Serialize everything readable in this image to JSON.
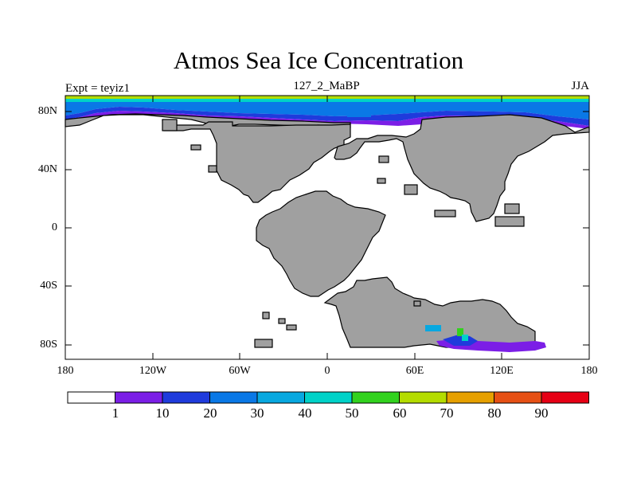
{
  "title": "Atmos Sea Ice Concentration",
  "subtitle_left": "Expt = teyiz1",
  "subtitle_center": "127_2_MaBP",
  "subtitle_right": "JJA",
  "y_tick_labels": [
    "80N",
    "40N",
    "0",
    "40S",
    "80S"
  ],
  "x_tick_labels": [
    "180",
    "120W",
    "60W",
    "0",
    "60E",
    "120E",
    "180"
  ],
  "colorbar": {
    "labels": [
      "1",
      "10",
      "20",
      "30",
      "40",
      "50",
      "60",
      "70",
      "80",
      "90"
    ],
    "colors": [
      "#ffffff",
      "#7b1ee6",
      "#1f3bdc",
      "#0a78e6",
      "#08a8e0",
      "#00d2c8",
      "#32d21e",
      "#b4dc00",
      "#e6a000",
      "#e65014",
      "#e60014"
    ]
  },
  "colors": {
    "land": "#a0a0a0",
    "outline": "#000000"
  }
}
